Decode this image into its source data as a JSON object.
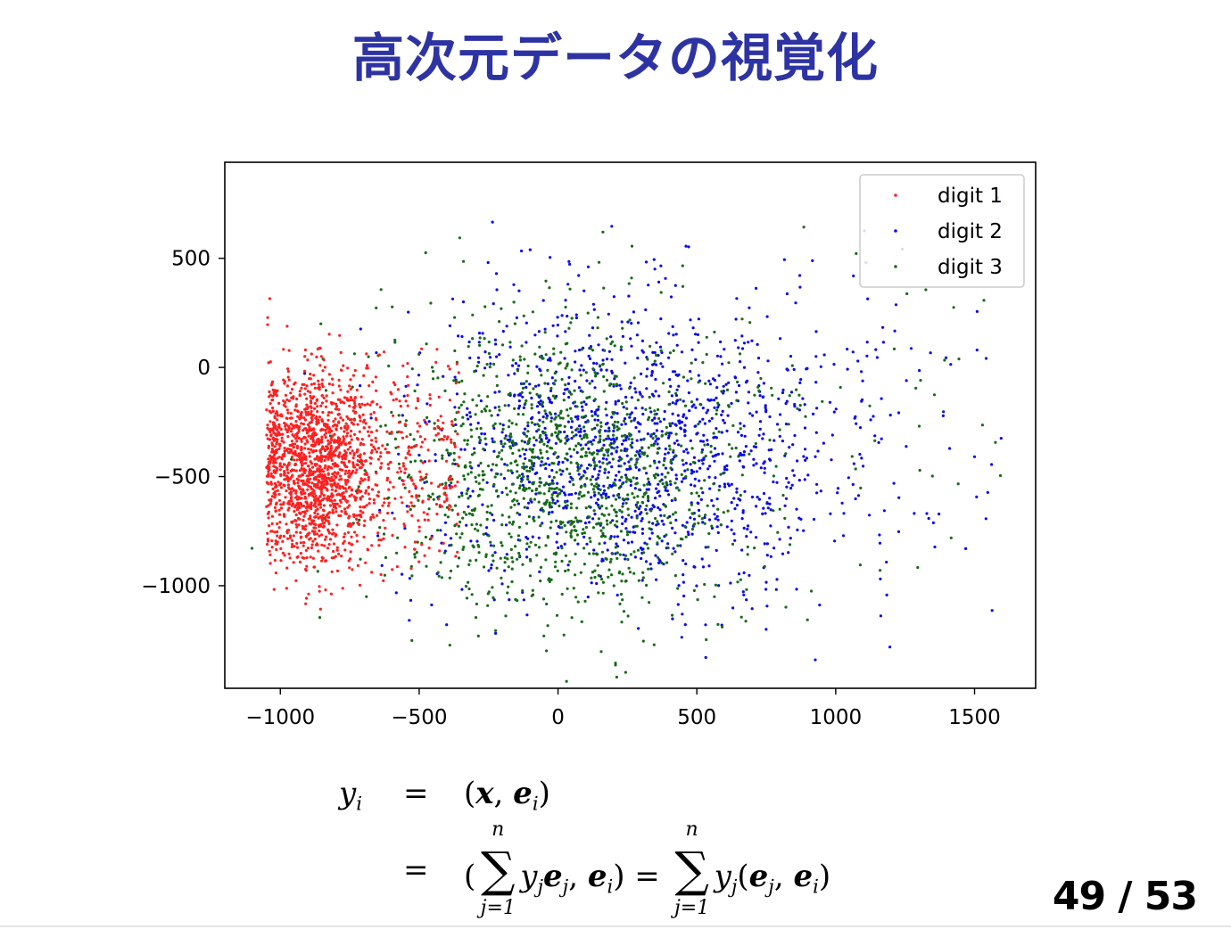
{
  "slide": {
    "title": "高次元データの視覚化",
    "page_number": "49 / 53"
  },
  "chart_data": {
    "type": "scatter",
    "title": "",
    "xlabel": "",
    "ylabel": "",
    "xlim": [
      -1200,
      1720
    ],
    "ylim": [
      -1470,
      940
    ],
    "x_ticks": [
      -1000,
      -500,
      0,
      500,
      1000,
      1500
    ],
    "x_tick_labels": [
      "−1000",
      "−500",
      "0",
      "500",
      "1000",
      "1500"
    ],
    "y_ticks": [
      500,
      0,
      -500,
      -1000
    ],
    "y_tick_labels": [
      "500",
      "0",
      "−500",
      "−1000"
    ],
    "grid": false,
    "legend_position": "top-right",
    "series": [
      {
        "name": "digit 1",
        "color": "#ff2020",
        "cluster": {
          "center": [
            -880,
            -450
          ],
          "spread": [
            110,
            220
          ],
          "count": 1500
        },
        "tail": {
          "x_range": [
            -760,
            -350
          ],
          "y_range": [
            -1050,
            150
          ],
          "count": 260
        }
      },
      {
        "name": "digit 2",
        "color": "#0a0aee",
        "cluster": {
          "center": [
            280,
            -380
          ],
          "spread": [
            380,
            330
          ],
          "count": 1250
        },
        "tail": {
          "x_range": [
            -600,
            1600
          ],
          "y_range": [
            -1370,
            830
          ],
          "count": 160
        }
      },
      {
        "name": "digit 3",
        "color": "#176c17",
        "cluster": {
          "center": [
            40,
            -520
          ],
          "spread": [
            330,
            320
          ],
          "count": 1200
        },
        "tail": {
          "x_range": [
            -750,
            1600
          ],
          "y_range": [
            -1260,
            770
          ],
          "count": 110
        }
      }
    ]
  },
  "formula": {
    "row1": {
      "lhs": "y",
      "lhs_sub": "i",
      "eq": "=",
      "rhs": "(x, e_i)"
    },
    "row2": {
      "eq": "=",
      "sum_top": "n",
      "sum_bottom": "j=1"
    }
  }
}
